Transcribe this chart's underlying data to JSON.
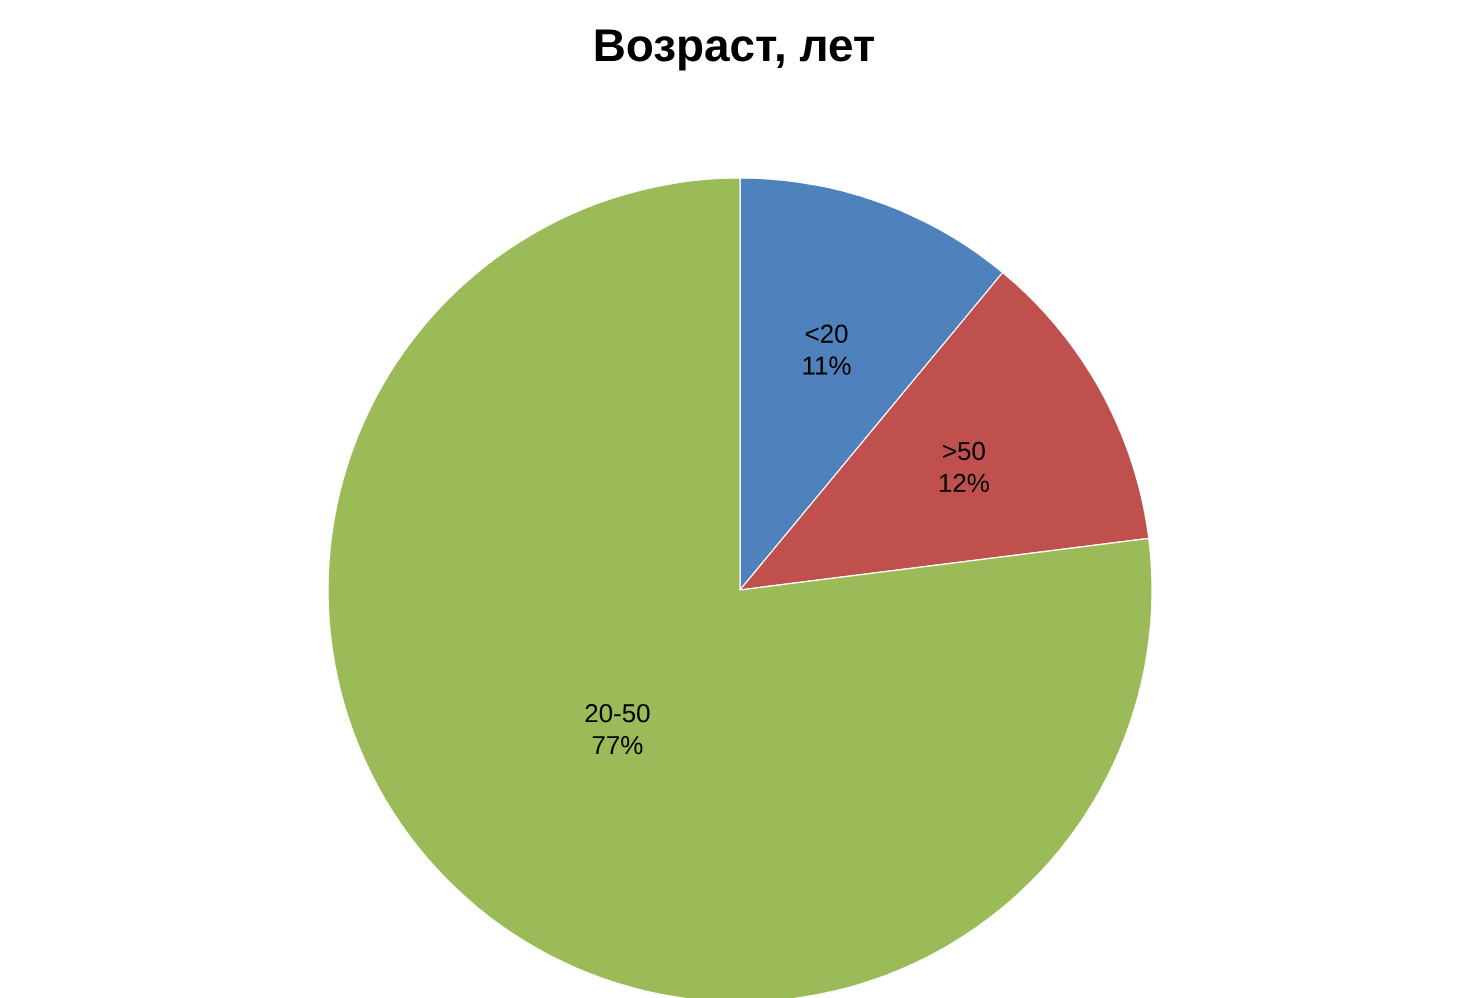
{
  "chart_data": {
    "type": "pie",
    "title": "Возраст, лет",
    "categories": [
      "<20",
      ">50",
      "20-50"
    ],
    "values": [
      11,
      12,
      77
    ],
    "value_labels": [
      "11%",
      "12%",
      "77%"
    ],
    "colors": [
      "#4f81bd",
      "#c0504d",
      "#9bbb59"
    ]
  }
}
